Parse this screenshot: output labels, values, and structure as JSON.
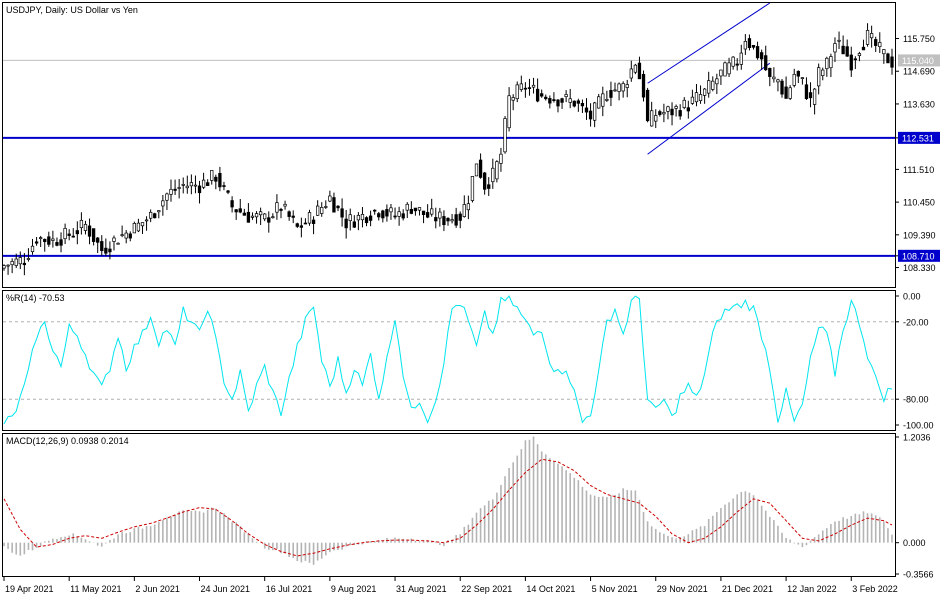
{
  "title": "USDJPY, Daily:  US Dollar vs Yen",
  "colors": {
    "candle": "#000000",
    "level_line": "#0000cc",
    "level_label_bg": "#0000cc",
    "current_label_bg": "#c0c0c0",
    "wpr_line": "#00e5ee",
    "macd_hist": "#b4b4b4",
    "macd_signal": "#cc0000",
    "grid_dash": "#b0b0b0"
  },
  "chart_data": [
    {
      "type": "candlestick",
      "title": "USDJPY, Daily:  US Dollar vs Yen",
      "ylim": [
        107.7,
        116.9
      ],
      "y_ticks": [
        "115.750",
        "114.690",
        "113.630",
        "112.531",
        "111.510",
        "110.450",
        "109.390",
        "108.710",
        "108.330"
      ],
      "y_tick_values": [
        115.75,
        114.69,
        113.63,
        112.531,
        111.51,
        110.45,
        109.39,
        108.71,
        108.33
      ],
      "current_price": 115.04,
      "current_price_label": "115.040",
      "horizontal_levels": [
        {
          "value": 112.531,
          "label": "112.531"
        },
        {
          "value": 108.71,
          "label": "108.710"
        }
      ],
      "channel": {
        "upper": {
          "from": {
            "bar": 158,
            "price": 114.3
          },
          "to": {
            "bar": 188,
            "price": 116.9
          }
        },
        "lower": {
          "from": {
            "bar": 158,
            "price": 112.0
          },
          "to": {
            "bar": 188,
            "price": 114.95
          }
        }
      },
      "x_ticks": [
        "19 Apr 2021",
        "11 May 2021",
        "2 Jun 2021",
        "24 Jun 2021",
        "16 Jul 2021",
        "9 Aug 2021",
        "31 Aug 2021",
        "22 Sep 2021",
        "14 Oct 2021",
        "5 Nov 2021",
        "29 Nov 2021",
        "21 Dec 2021",
        "12 Jan 2022",
        "3 Feb 2022"
      ],
      "x_tick_bars": [
        0,
        16,
        32,
        48,
        64,
        80,
        96,
        112,
        128,
        144,
        160,
        176,
        192,
        208
      ],
      "close_anchors": [
        [
          0,
          108.4
        ],
        [
          5,
          108.6
        ],
        [
          8,
          109.3
        ],
        [
          12,
          109.2
        ],
        [
          16,
          109.4
        ],
        [
          20,
          109.7
        ],
        [
          24,
          108.9
        ],
        [
          28,
          109.3
        ],
        [
          32,
          109.6
        ],
        [
          36,
          110.0
        ],
        [
          40,
          110.7
        ],
        [
          44,
          111.0
        ],
        [
          48,
          111.0
        ],
        [
          52,
          111.3
        ],
        [
          56,
          110.3
        ],
        [
          60,
          110.0
        ],
        [
          64,
          109.9
        ],
        [
          68,
          110.3
        ],
        [
          72,
          109.6
        ],
        [
          76,
          110.0
        ],
        [
          80,
          110.6
        ],
        [
          84,
          109.8
        ],
        [
          88,
          110.0
        ],
        [
          92,
          110.2
        ],
        [
          96,
          110.0
        ],
        [
          100,
          110.3
        ],
        [
          104,
          110.0
        ],
        [
          108,
          109.9
        ],
        [
          112,
          110.0
        ],
        [
          114,
          110.6
        ],
        [
          116,
          111.8
        ],
        [
          118,
          111.0
        ],
        [
          120,
          111.3
        ],
        [
          122,
          112.0
        ],
        [
          124,
          113.8
        ],
        [
          126,
          114.0
        ],
        [
          128,
          114.2
        ],
        [
          132,
          113.9
        ],
        [
          136,
          113.8
        ],
        [
          140,
          113.7
        ],
        [
          144,
          113.2
        ],
        [
          148,
          114.0
        ],
        [
          152,
          114.2
        ],
        [
          155,
          115.0
        ],
        [
          157,
          114.0
        ],
        [
          158,
          113.0
        ],
        [
          160,
          113.3
        ],
        [
          164,
          113.4
        ],
        [
          168,
          113.6
        ],
        [
          172,
          114.0
        ],
        [
          176,
          114.6
        ],
        [
          180,
          115.0
        ],
        [
          182,
          115.8
        ],
        [
          184,
          115.4
        ],
        [
          186,
          115.1
        ],
        [
          188,
          114.4
        ],
        [
          190,
          114.4
        ],
        [
          192,
          113.8
        ],
        [
          194,
          114.6
        ],
        [
          196,
          114.3
        ],
        [
          198,
          113.7
        ],
        [
          200,
          114.6
        ],
        [
          202,
          114.9
        ],
        [
          204,
          115.6
        ],
        [
          206,
          115.4
        ],
        [
          208,
          115.0
        ],
        [
          210,
          115.5
        ],
        [
          212,
          115.8
        ],
        [
          214,
          115.5
        ],
        [
          216,
          115.2
        ],
        [
          218,
          115.0
        ]
      ]
    },
    {
      "type": "line",
      "title": "%R(14) -70.53",
      "ylim": [
        -100,
        0
      ],
      "y_ticks": [
        "0.00",
        "-20.00",
        "-80.00",
        "-100.00"
      ],
      "y_tick_values": [
        0,
        -20,
        -80,
        -100
      ],
      "levels": [
        -20,
        -80
      ],
      "anchors": [
        [
          0,
          -98
        ],
        [
          2,
          -95
        ],
        [
          4,
          -80
        ],
        [
          6,
          -60
        ],
        [
          8,
          -30
        ],
        [
          10,
          -22
        ],
        [
          12,
          -40
        ],
        [
          14,
          -55
        ],
        [
          16,
          -25
        ],
        [
          18,
          -30
        ],
        [
          20,
          -45
        ],
        [
          22,
          -60
        ],
        [
          24,
          -72
        ],
        [
          26,
          -55
        ],
        [
          28,
          -30
        ],
        [
          30,
          -55
        ],
        [
          32,
          -40
        ],
        [
          34,
          -30
        ],
        [
          36,
          -15
        ],
        [
          38,
          -35
        ],
        [
          40,
          -25
        ],
        [
          42,
          -40
        ],
        [
          44,
          -12
        ],
        [
          46,
          -20
        ],
        [
          48,
          -30
        ],
        [
          50,
          -8
        ],
        [
          52,
          -35
        ],
        [
          54,
          -65
        ],
        [
          56,
          -80
        ],
        [
          58,
          -60
        ],
        [
          60,
          -90
        ],
        [
          62,
          -70
        ],
        [
          64,
          -55
        ],
        [
          66,
          -75
        ],
        [
          68,
          -90
        ],
        [
          70,
          -65
        ],
        [
          72,
          -40
        ],
        [
          74,
          -20
        ],
        [
          76,
          -8
        ],
        [
          78,
          -50
        ],
        [
          80,
          -70
        ],
        [
          82,
          -50
        ],
        [
          84,
          -75
        ],
        [
          86,
          -55
        ],
        [
          88,
          -70
        ],
        [
          90,
          -45
        ],
        [
          92,
          -78
        ],
        [
          94,
          -50
        ],
        [
          96,
          -15
        ],
        [
          98,
          -60
        ],
        [
          100,
          -90
        ],
        [
          102,
          -80
        ],
        [
          104,
          -95
        ],
        [
          106,
          -80
        ],
        [
          108,
          -50
        ],
        [
          110,
          -10
        ],
        [
          112,
          -5
        ],
        [
          114,
          -20
        ],
        [
          116,
          -40
        ],
        [
          118,
          -15
        ],
        [
          120,
          -30
        ],
        [
          122,
          -5
        ],
        [
          124,
          -2
        ],
        [
          126,
          -10
        ],
        [
          128,
          -20
        ],
        [
          130,
          -30
        ],
        [
          132,
          -25
        ],
        [
          134,
          -50
        ],
        [
          136,
          -60
        ],
        [
          138,
          -55
        ],
        [
          140,
          -75
        ],
        [
          142,
          -98
        ],
        [
          144,
          -90
        ],
        [
          146,
          -60
        ],
        [
          148,
          -20
        ],
        [
          150,
          -10
        ],
        [
          152,
          -30
        ],
        [
          154,
          -5
        ],
        [
          156,
          -2
        ],
        [
          158,
          -80
        ],
        [
          160,
          -90
        ],
        [
          162,
          -80
        ],
        [
          164,
          -95
        ],
        [
          166,
          -78
        ],
        [
          168,
          -70
        ],
        [
          170,
          -80
        ],
        [
          172,
          -60
        ],
        [
          174,
          -30
        ],
        [
          176,
          -15
        ],
        [
          178,
          -10
        ],
        [
          180,
          -8
        ],
        [
          182,
          -5
        ],
        [
          184,
          -10
        ],
        [
          186,
          -30
        ],
        [
          188,
          -55
        ],
        [
          190,
          -95
        ],
        [
          192,
          -75
        ],
        [
          194,
          -98
        ],
        [
          196,
          -85
        ],
        [
          198,
          -50
        ],
        [
          200,
          -25
        ],
        [
          202,
          -30
        ],
        [
          204,
          -60
        ],
        [
          206,
          -25
        ],
        [
          208,
          -5
        ],
        [
          210,
          -20
        ],
        [
          212,
          -45
        ],
        [
          214,
          -65
        ],
        [
          216,
          -78
        ],
        [
          218,
          -70.53
        ]
      ]
    },
    {
      "type": "bar_line",
      "title": "MACD(12,26,9) 0.0938 0.2014",
      "ylim": [
        -0.3566,
        1.2036
      ],
      "y_ticks": [
        "1.2036",
        "0.000",
        "-0.3566"
      ],
      "y_tick_values": [
        1.2036,
        0,
        -0.3566
      ],
      "histogram_anchors": [
        [
          0,
          -0.05
        ],
        [
          4,
          -0.15
        ],
        [
          8,
          -0.05
        ],
        [
          12,
          0.05
        ],
        [
          16,
          0.1
        ],
        [
          20,
          0.05
        ],
        [
          24,
          -0.05
        ],
        [
          28,
          0.1
        ],
        [
          32,
          0.15
        ],
        [
          36,
          0.2
        ],
        [
          40,
          0.3
        ],
        [
          44,
          0.35
        ],
        [
          48,
          0.35
        ],
        [
          52,
          0.4
        ],
        [
          56,
          0.25
        ],
        [
          60,
          0.1
        ],
        [
          64,
          -0.05
        ],
        [
          68,
          -0.1
        ],
        [
          72,
          -0.2
        ],
        [
          76,
          -0.25
        ],
        [
          80,
          -0.1
        ],
        [
          84,
          -0.05
        ],
        [
          88,
          0.0
        ],
        [
          92,
          0.02
        ],
        [
          96,
          0.05
        ],
        [
          100,
          0.05
        ],
        [
          104,
          0.02
        ],
        [
          108,
          -0.02
        ],
        [
          112,
          0.1
        ],
        [
          116,
          0.35
        ],
        [
          120,
          0.5
        ],
        [
          124,
          0.85
        ],
        [
          128,
          1.15
        ],
        [
          130,
          1.2
        ],
        [
          132,
          1.05
        ],
        [
          136,
          0.9
        ],
        [
          140,
          0.75
        ],
        [
          144,
          0.55
        ],
        [
          148,
          0.5
        ],
        [
          152,
          0.6
        ],
        [
          155,
          0.6
        ],
        [
          158,
          0.25
        ],
        [
          160,
          0.15
        ],
        [
          164,
          0.05
        ],
        [
          168,
          0.1
        ],
        [
          172,
          0.2
        ],
        [
          176,
          0.4
        ],
        [
          180,
          0.55
        ],
        [
          182,
          0.6
        ],
        [
          184,
          0.55
        ],
        [
          188,
          0.3
        ],
        [
          192,
          0.05
        ],
        [
          196,
          -0.05
        ],
        [
          200,
          0.1
        ],
        [
          204,
          0.25
        ],
        [
          208,
          0.3
        ],
        [
          212,
          0.35
        ],
        [
          216,
          0.25
        ],
        [
          218,
          0.09
        ]
      ],
      "signal_anchors": [
        [
          0,
          0.5
        ],
        [
          4,
          0.15
        ],
        [
          8,
          -0.05
        ],
        [
          12,
          -0.02
        ],
        [
          16,
          0.05
        ],
        [
          20,
          0.08
        ],
        [
          24,
          0.05
        ],
        [
          28,
          0.12
        ],
        [
          32,
          0.18
        ],
        [
          36,
          0.22
        ],
        [
          40,
          0.28
        ],
        [
          44,
          0.35
        ],
        [
          48,
          0.4
        ],
        [
          52,
          0.38
        ],
        [
          56,
          0.25
        ],
        [
          60,
          0.1
        ],
        [
          64,
          -0.02
        ],
        [
          68,
          -0.1
        ],
        [
          72,
          -0.15
        ],
        [
          76,
          -0.12
        ],
        [
          80,
          -0.07
        ],
        [
          84,
          -0.03
        ],
        [
          88,
          0.0
        ],
        [
          92,
          0.02
        ],
        [
          96,
          0.03
        ],
        [
          100,
          0.03
        ],
        [
          104,
          0.02
        ],
        [
          108,
          0.0
        ],
        [
          112,
          0.05
        ],
        [
          116,
          0.2
        ],
        [
          120,
          0.38
        ],
        [
          124,
          0.6
        ],
        [
          128,
          0.8
        ],
        [
          132,
          0.95
        ],
        [
          136,
          0.92
        ],
        [
          140,
          0.82
        ],
        [
          144,
          0.65
        ],
        [
          148,
          0.55
        ],
        [
          152,
          0.5
        ],
        [
          156,
          0.45
        ],
        [
          160,
          0.3
        ],
        [
          164,
          0.1
        ],
        [
          168,
          0.0
        ],
        [
          172,
          0.05
        ],
        [
          176,
          0.18
        ],
        [
          180,
          0.35
        ],
        [
          184,
          0.5
        ],
        [
          188,
          0.45
        ],
        [
          192,
          0.25
        ],
        [
          196,
          0.05
        ],
        [
          200,
          0.02
        ],
        [
          204,
          0.1
        ],
        [
          208,
          0.2
        ],
        [
          212,
          0.28
        ],
        [
          216,
          0.25
        ],
        [
          218,
          0.2014
        ]
      ]
    }
  ]
}
